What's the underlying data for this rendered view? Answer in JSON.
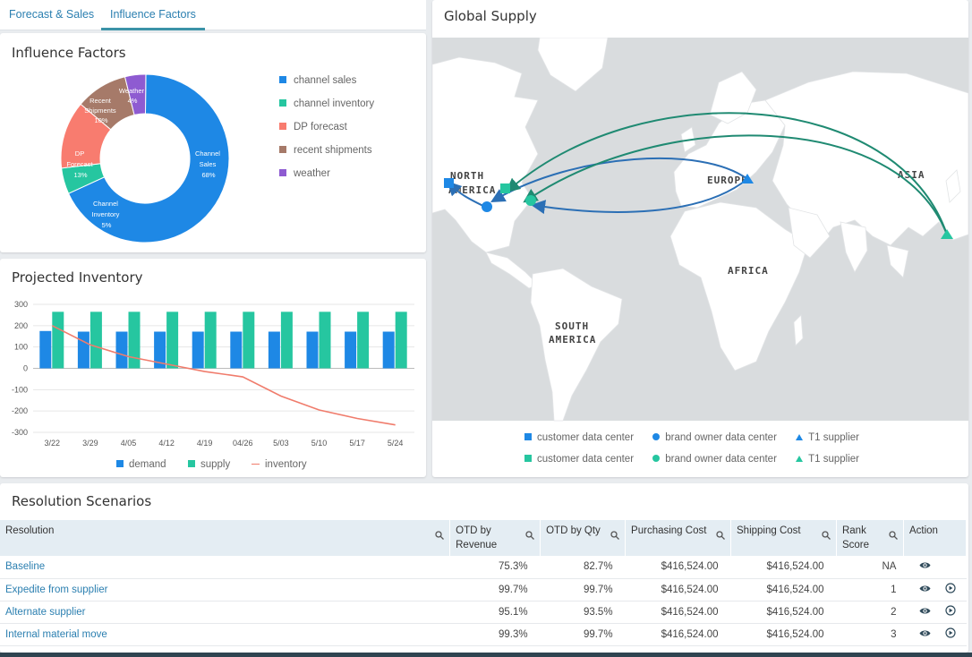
{
  "tabs": [
    {
      "label": "Forecast & Sales",
      "active": false
    },
    {
      "label": "Influence Factors",
      "active": true
    }
  ],
  "influence": {
    "title": "Influence Factors",
    "legend": [
      "channel sales",
      "channel inventory",
      "DP forecast",
      "recent shipments",
      "weather"
    ],
    "labels": {
      "channel_sales": [
        "Channel",
        "Sales",
        "68%"
      ],
      "channel_inventory": [
        "Channel",
        "Inventory",
        "5%"
      ],
      "dp_forecast": [
        "DP",
        "Forecast",
        "13%"
      ],
      "recent_shipments": [
        "Recent",
        "Shipments",
        "10%"
      ],
      "weather": [
        "Weather",
        "4%"
      ]
    }
  },
  "projected": {
    "title": "Projected Inventory",
    "legend": [
      "demand",
      "supply",
      "inventory"
    ]
  },
  "chart_data": {
    "type": "bar",
    "categories": [
      "3/22",
      "3/29",
      "4/05",
      "4/12",
      "4/19",
      "04/26",
      "5/03",
      "5/10",
      "5/17",
      "5/24"
    ],
    "series": [
      {
        "name": "demand",
        "type": "bar",
        "color": "#1e88e5",
        "values": [
          175,
          172,
          172,
          172,
          172,
          172,
          172,
          172,
          172,
          172
        ]
      },
      {
        "name": "supply",
        "type": "bar",
        "color": "#26c6a0",
        "values": [
          265,
          265,
          265,
          265,
          265,
          265,
          265,
          265,
          265,
          265
        ]
      },
      {
        "name": "inventory",
        "type": "line",
        "color": "#f07c6c",
        "values": [
          200,
          110,
          55,
          20,
          -15,
          -40,
          -130,
          -195,
          -235,
          -265
        ]
      }
    ],
    "ylim": [
      -300,
      300
    ],
    "yticks": [
      300,
      200,
      100,
      0,
      -100,
      -200,
      -300
    ],
    "grid": true,
    "legend": "bottom"
  },
  "donut_data": {
    "type": "pie",
    "categories": [
      "channel sales",
      "channel inventory",
      "DP forecast",
      "recent shipments",
      "weather"
    ],
    "values": [
      68,
      5,
      13,
      10,
      4
    ],
    "colors": [
      "#1e88e5",
      "#26c6a0",
      "#f87c6f",
      "#a67a69",
      "#8e5bd1"
    ]
  },
  "supply": {
    "title": "Global Supply",
    "regions": {
      "north_america_1": "NORTH",
      "north_america_2": "AMERICA",
      "europe": "EUROPE",
      "asia": "ASIA",
      "africa": "AFRICA",
      "south_america_1": "SOUTH",
      "south_america_2": "AMERICA"
    },
    "legend": [
      {
        "label": "customer data center",
        "shape": "square",
        "color": "#1e88e5"
      },
      {
        "label": "brand owner data center",
        "shape": "circle",
        "color": "#1e88e5"
      },
      {
        "label": "T1 supplier",
        "shape": "triangle",
        "color": "#1e88e5"
      },
      {
        "label": "customer data center",
        "shape": "square",
        "color": "#26c6a0"
      },
      {
        "label": "brand owner data center",
        "shape": "circle",
        "color": "#26c6a0"
      },
      {
        "label": "T1 supplier",
        "shape": "triangle",
        "color": "#26c6a0"
      }
    ]
  },
  "scenarios": {
    "title": "Resolution Scenarios",
    "columns": [
      "Resolution",
      "OTD by Revenue",
      "OTD by Qty",
      "Purchasing Cost",
      "Shipping Cost",
      "Rank Score",
      "Action"
    ],
    "rows": [
      {
        "resolution": "Baseline",
        "otd_revenue": "75.3%",
        "otd_qty": "82.7%",
        "purchasing": "$416,524.00",
        "shipping": "$416,524.00",
        "rank": "NA",
        "play": false
      },
      {
        "resolution": "Expedite from supplier",
        "otd_revenue": "99.7%",
        "otd_qty": "99.7%",
        "purchasing": "$416,524.00",
        "shipping": "$416,524.00",
        "rank": "1",
        "play": true
      },
      {
        "resolution": "Alternate supplier",
        "otd_revenue": "95.1%",
        "otd_qty": "93.5%",
        "purchasing": "$416,524.00",
        "shipping": "$416,524.00",
        "rank": "2",
        "play": true
      },
      {
        "resolution": "Internal material move",
        "otd_revenue": "99.3%",
        "otd_qty": "99.7%",
        "purchasing": "$416,524.00",
        "shipping": "$416,524.00",
        "rank": "3",
        "play": true
      }
    ]
  }
}
